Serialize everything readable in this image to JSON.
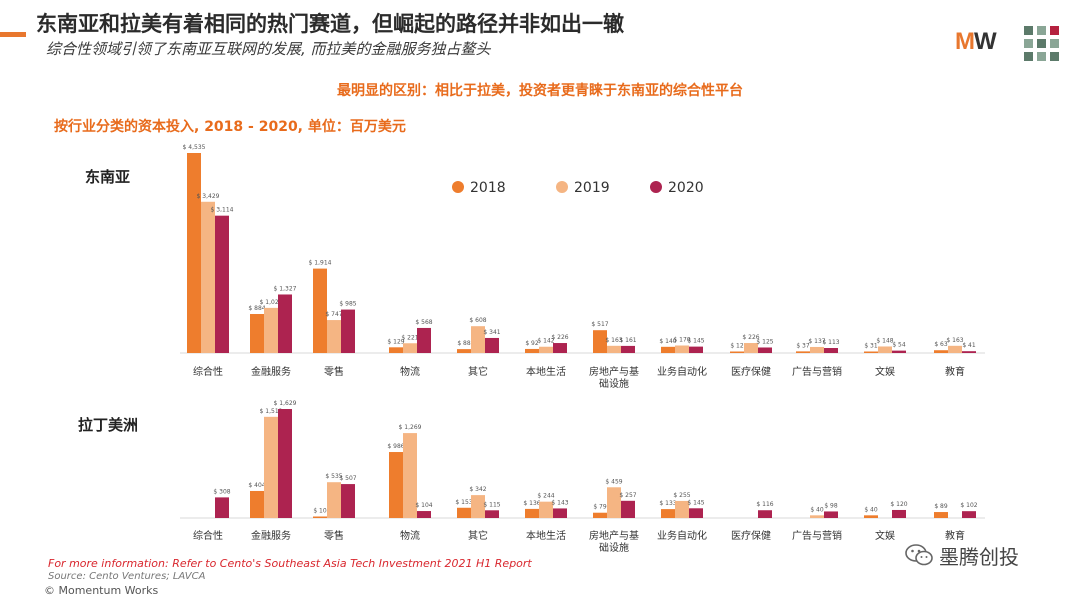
{
  "header": {
    "title": "东南亚和拉美有着相同的热门赛道，但崛起的路径并非如出一辙",
    "subtitle": "综合性领域引领了东南亚互联网的发展, 而拉美的金融服务独占鳌头",
    "highlight": "最明显的区别：相比于拉美，投资者更青睐于东南亚的综合性平台",
    "logo_m": "M",
    "logo_w": "W"
  },
  "footer": {
    "info": "For more information: Refer to Cento's Southeast Asia Tech Investment 2021 H1 Report",
    "source": "Source: Cento Ventures; LAVCA",
    "copyright": "© Momentum Works",
    "wechat": "墨腾创投"
  },
  "colors": {
    "y2018": "#ee7d2d",
    "y2019": "#f5b583",
    "y2020": "#ad2350",
    "accent": "#e86b1c"
  },
  "chart_data": [
    {
      "type": "bar",
      "title": "按行业分类的资本投入, 2018 - 2020, 单位：百万美元",
      "region": "东南亚",
      "value_prefix": "$ ",
      "legend": [
        "2018",
        "2019",
        "2020"
      ],
      "legend_position": "top-center",
      "categories": [
        "综合性",
        "金融服务",
        "零售",
        "物流",
        "其它",
        "本地生活",
        "房地产与基\n础设施",
        "业务自动化",
        "医疗保健",
        "广告与营销",
        "文娱",
        "教育"
      ],
      "series": [
        {
          "name": "2018",
          "values": [
            4535,
            884,
            1914,
            129,
            88,
            92,
            517,
            140,
            12,
            37,
            31,
            63
          ]
        },
        {
          "name": "2019",
          "values": [
            3429,
            1023,
            747,
            221,
            608,
            142,
            163,
            170,
            226,
            137,
            148,
            163
          ]
        },
        {
          "name": "2020",
          "values": [
            3114,
            1327,
            985,
            568,
            341,
            226,
            161,
            145,
            125,
            113,
            54,
            41
          ]
        }
      ],
      "ylim": [
        0,
        4535
      ]
    },
    {
      "type": "bar",
      "region": "拉丁美洲",
      "value_prefix": "$ ",
      "categories": [
        "综合性",
        "金融服务",
        "零售",
        "物流",
        "其它",
        "本地生活",
        "房地产与基\n础设施",
        "业务自动化",
        "医疗保健",
        "广告与营销",
        "文娱",
        "教育"
      ],
      "series": [
        {
          "name": "2018",
          "values": [
            null,
            404,
            10,
            986,
            153,
            136,
            79,
            133,
            null,
            null,
            40,
            89
          ]
        },
        {
          "name": "2019",
          "values": [
            null,
            1512,
            535,
            1269,
            342,
            244,
            459,
            255,
            null,
            40,
            null,
            null
          ]
        },
        {
          "name": "2020",
          "values": [
            308,
            1629,
            507,
            104,
            115,
            143,
            257,
            145,
            116,
            98,
            120,
            102
          ]
        }
      ],
      "ylim": [
        0,
        1629
      ]
    }
  ]
}
